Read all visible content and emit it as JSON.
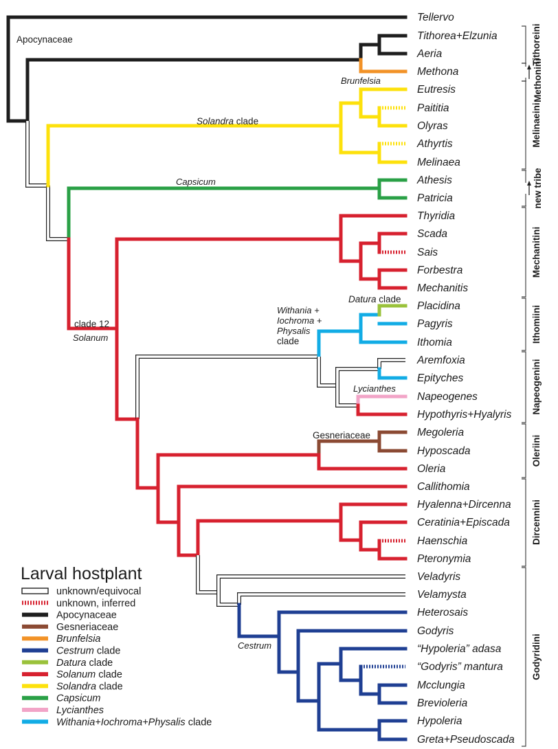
{
  "figure": {
    "type": "phylogenetic tree with larval hostplant ancestral states"
  },
  "colors": {
    "apocynaceae": "#1e1e1e",
    "gesneriaceae": "#8b4a33",
    "brunfelsia": "#f29227",
    "cestrum": "#1f3f93",
    "datura": "#9ac23b",
    "solanum": "#d7212f",
    "solandra": "#fde10c",
    "capsicum": "#2aa046",
    "lycianthes": "#f2a4c7",
    "withania": "#12ace5",
    "unknown_fill": "#ffffff",
    "unknown_stroke": "#1e1e1e"
  },
  "taxa": [
    "Tellervo",
    "Tithorea+Elzunia",
    "Aeria",
    "Methona",
    "Eutresis",
    "Paititia",
    "Olyras",
    "Athyrtis",
    "Melinaea",
    "Athesis",
    "Patricia",
    "Thyridia",
    "Scada",
    "Sais",
    "Forbestra",
    "Mechanitis",
    "Placidina",
    "Pagyris",
    "Ithomia",
    "Aremfoxia",
    "Epityches",
    "Napeogenes",
    "Hypothyris+Hyalyris",
    "Megoleria",
    "Hyposcada",
    "Oleria",
    "Callithomia",
    "Hyalenna+Dircenna",
    "Ceratinia+Episcada",
    "Haenschia",
    "Pteronymia",
    "Veladyris",
    "Velamysta",
    "Heterosais",
    "Godyris",
    "“Hypoleria” adasa",
    "“Godyris” mantura",
    "Mcclungia",
    "Brevioleria",
    "Hypoleria",
    "Greta+Pseudoscada"
  ],
  "tribes": [
    {
      "name": "Tithoreini"
    },
    {
      "name": "Methonini"
    },
    {
      "name": "Melinaeini"
    },
    {
      "name": "new tribe"
    },
    {
      "name": "Mechanitini"
    },
    {
      "name": "Ithomiini"
    },
    {
      "name": "Napeogenini"
    },
    {
      "name": "Oleriini"
    },
    {
      "name": "Dircennini"
    },
    {
      "name": "Godyridini"
    }
  ],
  "clade_labels": {
    "apocynaceae": "Apocynaceae",
    "brunfelsia": "Brunfelsia",
    "solandra_prefix": "Solandra",
    "solandra_suffix": " clade",
    "capsicum": "Capsicum",
    "clade12": "clade 12",
    "solanum": "Solanum",
    "datura_prefix": "Datura",
    "datura_suffix": " clade",
    "withania_line1": "Withania +",
    "withania_line2": "Iochroma +",
    "withania_line3": "Physalis",
    "withania_line4": "clade",
    "lycianthes": "Lycianthes",
    "gesneriaceae": "Gesneriaceae",
    "cestrum": "Cestrum"
  },
  "legend": {
    "title": "Larval hostplant",
    "items": [
      {
        "key": "unknown",
        "prefix": "",
        "italic": "",
        "suffix": "unknown/equivocal"
      },
      {
        "key": "inferred",
        "prefix": "",
        "italic": "",
        "suffix": "unknown, inferred"
      },
      {
        "key": "apocynaceae",
        "prefix": "",
        "italic": "",
        "suffix": "Apocynaceae"
      },
      {
        "key": "gesneriaceae",
        "prefix": "",
        "italic": "",
        "suffix": "Gesneriaceae"
      },
      {
        "key": "brunfelsia",
        "prefix": "",
        "italic": "Brunfelsia",
        "suffix": ""
      },
      {
        "key": "cestrum",
        "prefix": "",
        "italic": "Cestrum",
        "suffix": " clade"
      },
      {
        "key": "datura",
        "prefix": "",
        "italic": "Datura",
        "suffix": " clade"
      },
      {
        "key": "solanum",
        "prefix": "",
        "italic": "Solanum",
        "suffix": " clade"
      },
      {
        "key": "solandra",
        "prefix": "",
        "italic": "Solandra",
        "suffix": " clade"
      },
      {
        "key": "capsicum",
        "prefix": "",
        "italic": "Capsicum",
        "suffix": ""
      },
      {
        "key": "lycianthes",
        "prefix": "",
        "italic": "Lycianthes",
        "suffix": ""
      },
      {
        "key": "withania",
        "prefix": "",
        "italic": "Withania+Iochroma+Physalis",
        "suffix": " clade"
      }
    ]
  }
}
